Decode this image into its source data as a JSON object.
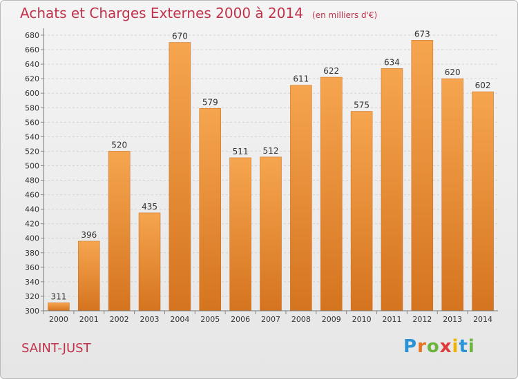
{
  "title": "Achats et Charges Externes 2000 à 2014",
  "unit": "(en milliers d'€)",
  "commune": "SAINT-JUST",
  "logo": {
    "chars": [
      "P",
      "r",
      "o",
      "x",
      "i",
      "t",
      "i"
    ],
    "colors": [
      "#2a93d5",
      "#e8731f",
      "#6cb33f",
      "#e23a3a",
      "#f0b400",
      "#2a93d5",
      "#6cb33f"
    ]
  },
  "colors": {
    "bar_light": "#f6a54f",
    "bar_dark": "#d5741f",
    "title": "#c0324b"
  },
  "chart_data": {
    "type": "bar",
    "categories": [
      "2000",
      "2001",
      "2002",
      "2003",
      "2004",
      "2005",
      "2006",
      "2007",
      "2008",
      "2009",
      "2010",
      "2011",
      "2012",
      "2013",
      "2014"
    ],
    "values": [
      311,
      396,
      520,
      435,
      670,
      579,
      511,
      512,
      611,
      622,
      575,
      634,
      673,
      620,
      602
    ],
    "ylim": [
      300,
      680
    ],
    "ytick_step": 20,
    "grid": true
  }
}
